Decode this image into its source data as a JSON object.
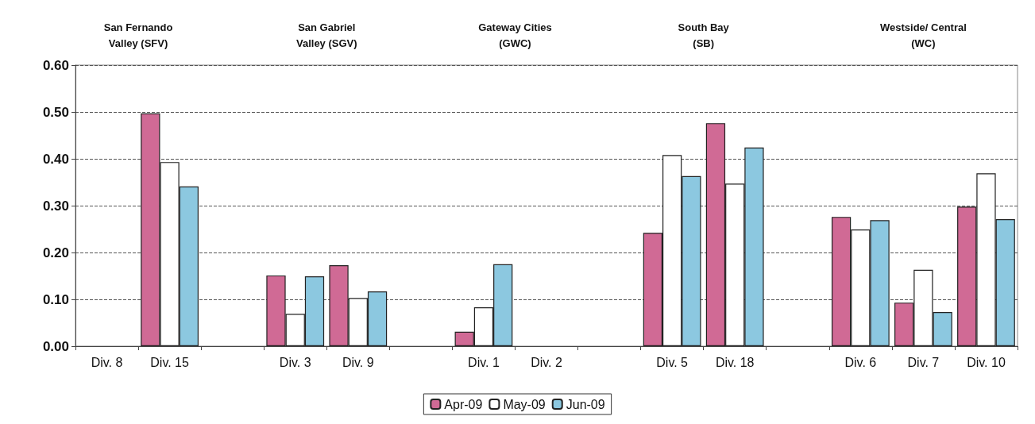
{
  "chart_data": {
    "type": "bar",
    "categories": [
      "Div. 8",
      "Div. 15",
      null,
      "Div. 3",
      "Div. 9",
      null,
      "Div. 1",
      "Div. 2",
      null,
      "Div. 5",
      "Div. 18",
      null,
      "Div. 6",
      "Div. 7",
      "Div. 10"
    ],
    "series": [
      {
        "name": "Apr-09",
        "color": "#d06a95",
        "values": [
          null,
          0.497,
          null,
          0.151,
          0.173,
          null,
          0.031,
          null,
          null,
          0.242,
          0.476,
          null,
          0.276,
          0.093,
          0.298
        ]
      },
      {
        "name": "May-09",
        "color": "#ffffff",
        "values": [
          null,
          0.393,
          null,
          0.069,
          0.103,
          null,
          0.083,
          null,
          null,
          0.408,
          0.347,
          null,
          0.249,
          0.163,
          0.369
        ]
      },
      {
        "name": "Jun-09",
        "color": "#8cc8e0",
        "values": [
          null,
          0.341,
          null,
          0.149,
          0.117,
          null,
          0.175,
          null,
          null,
          0.363,
          0.424,
          null,
          0.269,
          0.073,
          0.271
        ]
      }
    ],
    "ylim": [
      0,
      0.6
    ],
    "yticks": [
      {
        "value": 0,
        "label": "0.00"
      },
      {
        "value": 0.1,
        "label": "0.10"
      },
      {
        "value": 0.2,
        "label": "0.20"
      },
      {
        "value": 0.3,
        "label": "0.30"
      },
      {
        "value": 0.4,
        "label": "0.40"
      },
      {
        "value": 0.5,
        "label": "0.50"
      },
      {
        "value": 0.6,
        "label": "0.60"
      }
    ],
    "annotations": [
      "San Fernando\nValley (SFV)",
      "San Gabriel\nValley (SGV)",
      "Gateway Cities\n(GWC)",
      "South Bay\n(SB)",
      "Westside/ Central\n(WC)"
    ],
    "grid": "y",
    "legend": "bottom"
  }
}
